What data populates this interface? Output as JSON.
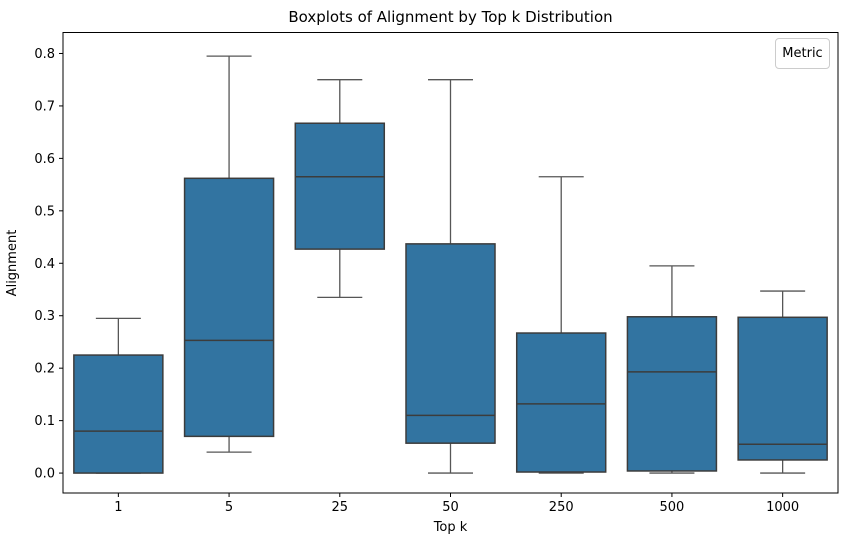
{
  "figure": {
    "title": "Boxplots of Alignment by Top k Distribution",
    "xlabel": "Top k",
    "ylabel": "Alignment",
    "legend_title": "Metric"
  },
  "chart_data": {
    "type": "boxplot",
    "title": "Boxplots of Alignment by Top k Distribution",
    "xlabel": "Top k",
    "ylabel": "Alignment",
    "categories": [
      "1",
      "5",
      "25",
      "50",
      "250",
      "500",
      "1000"
    ],
    "series": [
      {
        "name": "Metric",
        "boxes": [
          {
            "whisker_low": 0.0,
            "q1": 0.0,
            "median": 0.08,
            "q3": 0.225,
            "whisker_high": 0.295
          },
          {
            "whisker_low": 0.04,
            "q1": 0.07,
            "median": 0.253,
            "q3": 0.562,
            "whisker_high": 0.795
          },
          {
            "whisker_low": 0.335,
            "q1": 0.427,
            "median": 0.565,
            "q3": 0.667,
            "whisker_high": 0.75
          },
          {
            "whisker_low": 0.0,
            "q1": 0.057,
            "median": 0.11,
            "q3": 0.437,
            "whisker_high": 0.75
          },
          {
            "whisker_low": 0.0,
            "q1": 0.002,
            "median": 0.132,
            "q3": 0.267,
            "whisker_high": 0.565
          },
          {
            "whisker_low": 0.0,
            "q1": 0.004,
            "median": 0.193,
            "q3": 0.298,
            "whisker_high": 0.395
          },
          {
            "whisker_low": 0.0,
            "q1": 0.025,
            "median": 0.055,
            "q3": 0.297,
            "whisker_high": 0.347
          }
        ]
      }
    ],
    "yticks": [
      0.0,
      0.1,
      0.2,
      0.3,
      0.4,
      0.5,
      0.6,
      0.7,
      0.8
    ],
    "ylim": [
      -0.038,
      0.84
    ],
    "grid": false,
    "legend": {
      "title": "Metric",
      "position": "upper right"
    },
    "colors": {
      "box_fill": "#3274a1",
      "box_edge": "#3c3c3c",
      "median": "#3c3c3c",
      "whisker": "#565656",
      "spine": "#000000"
    }
  }
}
